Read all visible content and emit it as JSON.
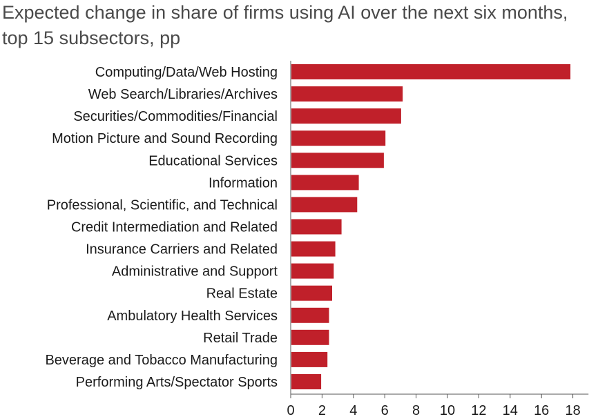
{
  "chart_data": {
    "type": "bar",
    "orientation": "horizontal",
    "title": "Expected change in share of firms using AI over the next six months, top 15 subsectors, pp",
    "xlabel": "",
    "ylabel": "",
    "categories": [
      "Computing/Data/Web Hosting",
      "Web Search/Libraries/Archives",
      "Securities/Commodities/Financial",
      "Motion Picture and Sound Recording",
      "Educational Services",
      "Information",
      "Professional, Scientific, and Technical",
      "Credit Intermediation and Related",
      "Insurance Carriers and Related",
      "Administrative and Support",
      "Real Estate",
      "Ambulatory Health Services",
      "Retail Trade",
      "Beverage and Tobacco Manufacturing",
      "Performing Arts/Spectator Sports"
    ],
    "values": [
      17.8,
      7.1,
      7.0,
      6.0,
      5.9,
      4.3,
      4.2,
      3.2,
      2.8,
      2.7,
      2.6,
      2.4,
      2.4,
      2.3,
      1.9
    ],
    "xlim": [
      0,
      19
    ],
    "xticks": [
      "0",
      "2",
      "4",
      "6",
      "8",
      "10",
      "12",
      "14",
      "16",
      "18"
    ],
    "bar_color": "#c0202a",
    "grid": false,
    "legend": "none"
  }
}
